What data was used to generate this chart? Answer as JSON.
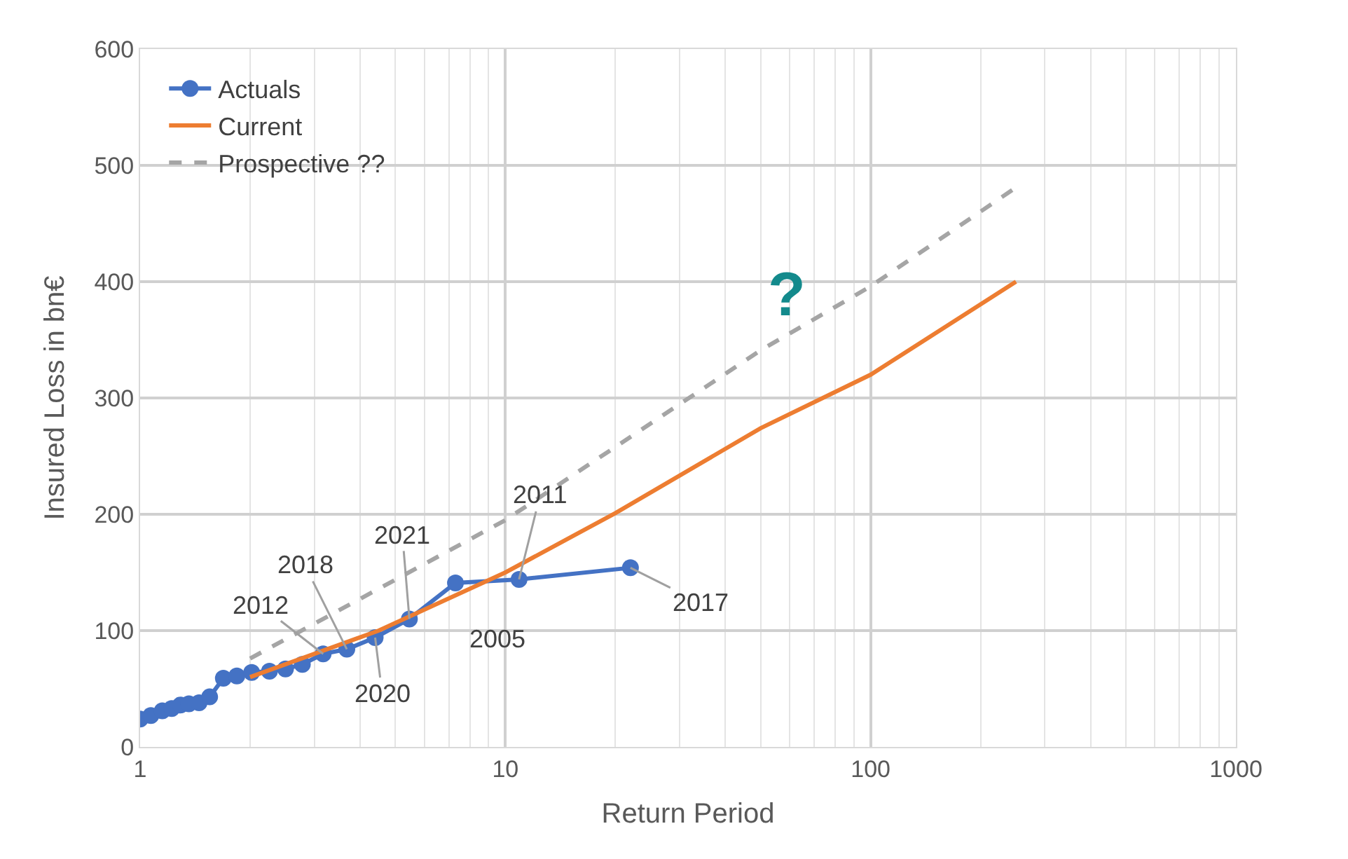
{
  "chart_data": {
    "type": "line",
    "xlabel": "Return Period",
    "ylabel": "Insured Loss in bn€",
    "log": "x",
    "grid": true,
    "legend": "top left",
    "xlim": [
      1,
      1000
    ],
    "xticks": [
      1,
      10,
      100,
      1000
    ],
    "ylim": [
      0,
      600
    ],
    "yticks": [
      0,
      100,
      200,
      300,
      400,
      500,
      600
    ],
    "series": [
      {
        "name": "Actuals",
        "color": "#4472c4",
        "marker": "circle",
        "line_style": "solid",
        "x": [
          1,
          1.07,
          1.15,
          1.22,
          1.29,
          1.36,
          1.45,
          1.55,
          1.69,
          1.84,
          2.02,
          2.26,
          2.5,
          2.78,
          3.17,
          3.68,
          4.4,
          5.46,
          7.3,
          10.9,
          22
        ],
        "values": [
          24,
          27,
          31,
          33,
          36,
          37,
          38,
          43,
          59,
          61,
          64,
          65,
          67,
          71,
          80,
          84,
          94,
          110,
          141,
          144,
          154
        ]
      },
      {
        "name": "Current",
        "color": "#ed7d31",
        "marker": "none",
        "line_style": "solid",
        "x": [
          2,
          4.5,
          10,
          20,
          50,
          100,
          250
        ],
        "values": [
          60,
          100,
          150,
          201,
          274,
          320,
          400
        ]
      },
      {
        "name": "Prospective ??",
        "color": "#a5a5a5",
        "marker": "none",
        "line_style": "dashed",
        "x": [
          2,
          10,
          50,
          100,
          250
        ],
        "values": [
          76,
          195,
          341,
          396,
          481
        ]
      }
    ],
    "annotations": [
      {
        "text": "2012",
        "x": 3.17,
        "y": 80
      },
      {
        "text": "2018",
        "x": 3.68,
        "y": 84
      },
      {
        "text": "2020",
        "x": 4.4,
        "y": 94
      },
      {
        "text": "2021",
        "x": 5.46,
        "y": 110
      },
      {
        "text": "2005",
        "x": 7.3,
        "y": 141
      },
      {
        "text": "2011",
        "x": 10.9,
        "y": 144
      },
      {
        "text": "2017",
        "x": 22,
        "y": 154
      },
      "?"
    ]
  }
}
